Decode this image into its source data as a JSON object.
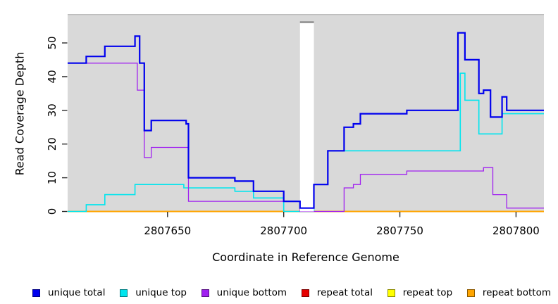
{
  "figure": {
    "xlabel": "Coordinate in Reference Genome",
    "ylabel": "Read Coverage Depth"
  },
  "legend": {
    "items": [
      {
        "label": "unique total",
        "color": "#0000EE"
      },
      {
        "label": "unique top",
        "color": "#00E5EE"
      },
      {
        "label": "unique bottom",
        "color": "#A020F0"
      },
      {
        "label": "repeat total",
        "color": "#E60000"
      },
      {
        "label": "repeat top",
        "color": "#FFFF00"
      },
      {
        "label": "repeat bottom",
        "color": "#FFA500"
      }
    ]
  },
  "chart_data": {
    "type": "line",
    "step": true,
    "title": "",
    "xlabel": "Coordinate in Reference Genome",
    "ylabel": "Read Coverage Depth",
    "x_domain": [
      2807607,
      2807812
    ],
    "y_domain": [
      0,
      58.7
    ],
    "x_ticks": [
      2807650,
      2807700,
      2807750,
      2807800
    ],
    "y_ticks": [
      0,
      10,
      20,
      30,
      40,
      50
    ],
    "grid": false,
    "legend_position": "bottom",
    "plot_background": "#d9d9d9",
    "no_data_gap": {
      "x_start": 2807707,
      "x_end": 2807713
    },
    "series": [
      {
        "name": "unique total",
        "color": "#0000EE",
        "width": 2.2,
        "z": 7,
        "points": [
          [
            2807607,
            44
          ],
          [
            2807615,
            46
          ],
          [
            2807623,
            49
          ],
          [
            2807636,
            52
          ],
          [
            2807638,
            44
          ],
          [
            2807640,
            24
          ],
          [
            2807643,
            27
          ],
          [
            2807658,
            26
          ],
          [
            2807659,
            10
          ],
          [
            2807679,
            9
          ],
          [
            2807687,
            6
          ],
          [
            2807700,
            3
          ],
          [
            2807707,
            1
          ],
          [
            2807713,
            8
          ],
          [
            2807719,
            18
          ],
          [
            2807726,
            25
          ],
          [
            2807730,
            26
          ],
          [
            2807733,
            29
          ],
          [
            2807753,
            30
          ],
          [
            2807775,
            53
          ],
          [
            2807778,
            45
          ],
          [
            2807784,
            35
          ],
          [
            2807786,
            36
          ],
          [
            2807789,
            28
          ],
          [
            2807794,
            34
          ],
          [
            2807796,
            30
          ]
        ]
      },
      {
        "name": "unique top",
        "color": "#00E5EE",
        "width": 1.6,
        "z": 4,
        "points": [
          [
            2807607,
            0
          ],
          [
            2807615,
            2
          ],
          [
            2807623,
            5
          ],
          [
            2807636,
            8
          ],
          [
            2807657,
            7
          ],
          [
            2807679,
            6
          ],
          [
            2807687,
            4
          ],
          [
            2807700,
            0
          ],
          [
            2807713,
            8
          ],
          [
            2807719,
            18
          ],
          [
            2807776,
            41
          ],
          [
            2807778,
            33
          ],
          [
            2807784,
            23
          ],
          [
            2807794,
            29
          ]
        ]
      },
      {
        "name": "unique bottom",
        "color": "#A020F0",
        "width": 1.3,
        "z": 5,
        "points": [
          [
            2807607,
            44
          ],
          [
            2807637,
            36
          ],
          [
            2807640,
            16
          ],
          [
            2807643,
            19
          ],
          [
            2807659,
            3
          ],
          [
            2807707,
            0
          ],
          [
            2807726,
            7
          ],
          [
            2807730,
            8
          ],
          [
            2807733,
            11
          ],
          [
            2807753,
            12
          ],
          [
            2807786,
            13
          ],
          [
            2807790,
            5
          ],
          [
            2807796,
            1
          ]
        ]
      },
      {
        "name": "repeat total",
        "color": "#E60000",
        "width": 1.5,
        "z": 1,
        "points": [
          [
            2807607,
            0
          ]
        ]
      },
      {
        "name": "repeat top",
        "color": "#FFFF00",
        "width": 1.5,
        "z": 2,
        "points": [
          [
            2807607,
            0
          ]
        ]
      },
      {
        "name": "repeat bottom",
        "color": "#FFA500",
        "width": 2.0,
        "z": 3,
        "points": [
          [
            2807607,
            0
          ]
        ]
      }
    ]
  }
}
